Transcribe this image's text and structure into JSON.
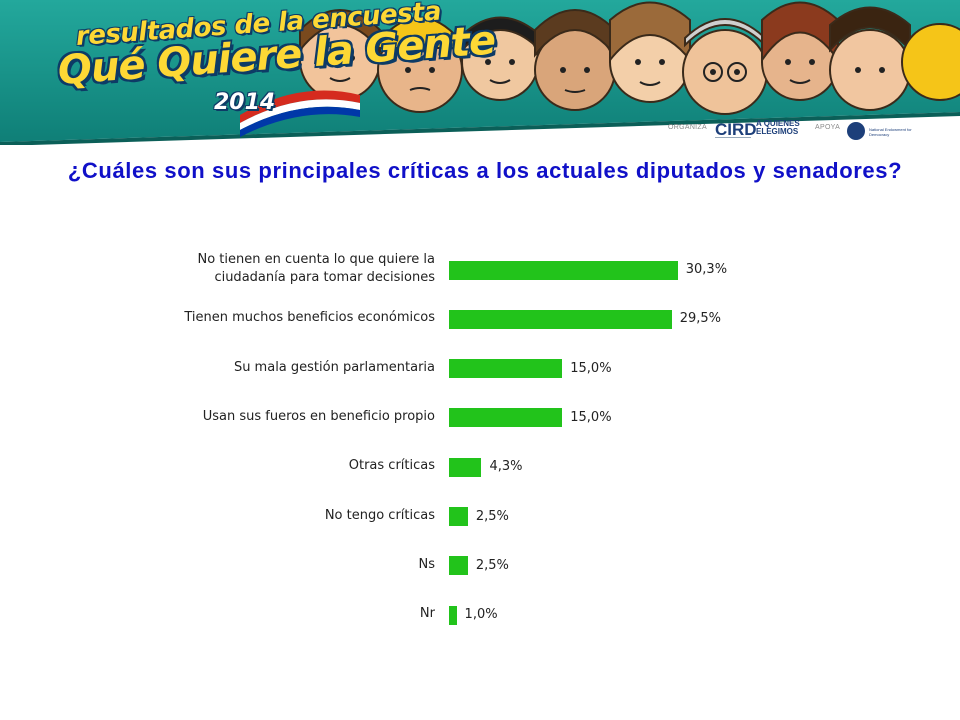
{
  "header": {
    "logo_line1": "resultados de la encuesta",
    "logo_line2": "Qué Quiere la Gente",
    "logo_year": "2014",
    "organiza_label": "ORGANIZA",
    "apoya_label": "APOYA",
    "org1": "CIRD",
    "org2": "A QUIENES ELEGIMOS",
    "org3": "NED",
    "org3_full": "National Endowment for Democracy",
    "colors": {
      "banner_teal": "#1a8f86",
      "logo_yellow": "#fdd835",
      "logo_outline": "#0d3b66"
    }
  },
  "question": "¿Cuáles son sus principales críticas a los actuales diputados y senadores?",
  "chart_data": {
    "type": "bar",
    "orientation": "horizontal",
    "categories": [
      "No tienen en cuenta lo que quiere la ciudadanía para tomar decisiones",
      "Tienen muchos beneficios económicos",
      "Su mala gestión parlamentaria",
      "Usan sus fueros en beneficio propio",
      "Otras críticas",
      "No tengo críticas",
      "Ns",
      "Nr"
    ],
    "category_lines": [
      [
        "No tienen en cuenta lo que quiere la",
        "ciudadanía para tomar decisiones"
      ],
      [
        "Tienen muchos beneficios económicos"
      ],
      [
        "Su mala gestión parlamentaria"
      ],
      [
        "Usan sus fueros en beneficio propio"
      ],
      [
        "Otras críticas"
      ],
      [
        "No tengo críticas"
      ],
      [
        "Ns"
      ],
      [
        "Nr"
      ]
    ],
    "values": [
      30.3,
      29.5,
      15.0,
      15.0,
      4.3,
      2.5,
      2.5,
      1.0
    ],
    "value_labels": [
      "30,3%",
      "29,5%",
      "15,0%",
      "15,0%",
      "4,3%",
      "2,5%",
      "2,5%",
      "1,0%"
    ],
    "bar_color": "#22c31b",
    "grid": false,
    "legend": "none"
  }
}
